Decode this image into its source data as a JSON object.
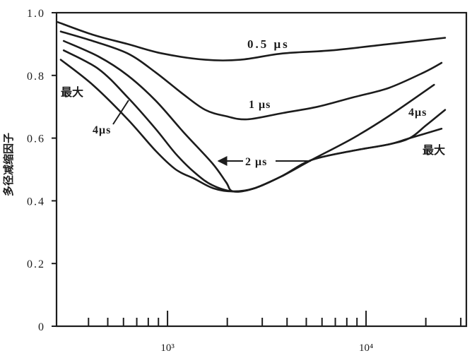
{
  "chart_data": {
    "type": "line",
    "ylabel": "多径减缩因子",
    "xscale": "log",
    "xlim": [
      276,
      32000
    ],
    "ylim": [
      0,
      1.0
    ],
    "grid": false,
    "legend": "none",
    "xticks": [
      {
        "value": 1000,
        "label": "10³"
      },
      {
        "value": 10000,
        "label": "10⁴"
      }
    ],
    "xminor_ticks": [
      400,
      500,
      600,
      700,
      800,
      900,
      2000,
      3000,
      4000,
      5000,
      6000,
      7000,
      8000,
      9000,
      20000,
      30000
    ],
    "yticks": [
      {
        "value": 0,
        "label": "0"
      },
      {
        "value": 0.2,
        "label": "0.2"
      },
      {
        "value": 0.4,
        "label": "0.4"
      },
      {
        "value": 0.6,
        "label": "0.6"
      },
      {
        "value": 0.8,
        "label": "0.8"
      },
      {
        "value": 1.0,
        "label": "1.0"
      }
    ],
    "series": [
      {
        "name": "0.5 μs",
        "x": [
          280,
          420,
          630,
          940,
          1550,
          2330,
          3800,
          6700,
          13000,
          25000
        ],
        "y": [
          0.97,
          0.93,
          0.9,
          0.87,
          0.85,
          0.85,
          0.87,
          0.88,
          0.9,
          0.92
        ]
      },
      {
        "name": "1 μs",
        "x": [
          290,
          420,
          630,
          870,
          1200,
          1550,
          1970,
          2520,
          3800,
          5700,
          8600,
          13000,
          19600,
          24000
        ],
        "y": [
          0.94,
          0.91,
          0.87,
          0.81,
          0.74,
          0.69,
          0.67,
          0.66,
          0.68,
          0.7,
          0.73,
          0.76,
          0.81,
          0.84
        ]
      },
      {
        "name": "2 μs",
        "x": [
          300,
          450,
          630,
          870,
          1200,
          1680,
          1970,
          2140,
          2740,
          3800,
          5300,
          8600,
          13000,
          22000
        ],
        "y": [
          0.91,
          0.86,
          0.8,
          0.72,
          0.62,
          0.52,
          0.46,
          0.43,
          0.44,
          0.48,
          0.53,
          0.6,
          0.67,
          0.77
        ]
      },
      {
        "name": "4μs",
        "x": [
          300,
          450,
          630,
          870,
          1100,
          1370,
          1680,
          2140,
          2740,
          3800,
          5300,
          8600,
          13000,
          16600,
          20000,
          25000
        ],
        "y": [
          0.88,
          0.82,
          0.73,
          0.63,
          0.55,
          0.49,
          0.45,
          0.43,
          0.44,
          0.48,
          0.53,
          0.56,
          0.58,
          0.6,
          0.64,
          0.69
        ]
      },
      {
        "name": "最大",
        "x": [
          290,
          420,
          630,
          870,
          1100,
          1370,
          1700,
          2140,
          2740,
          3800,
          5300,
          8600,
          13000,
          16600,
          24000
        ],
        "y": [
          0.85,
          0.77,
          0.66,
          0.56,
          0.5,
          0.47,
          0.44,
          0.43,
          0.44,
          0.48,
          0.53,
          0.56,
          0.58,
          0.6,
          0.63
        ]
      }
    ]
  },
  "colors": {
    "line": "#1c1c1c",
    "background": "#ffffff"
  }
}
